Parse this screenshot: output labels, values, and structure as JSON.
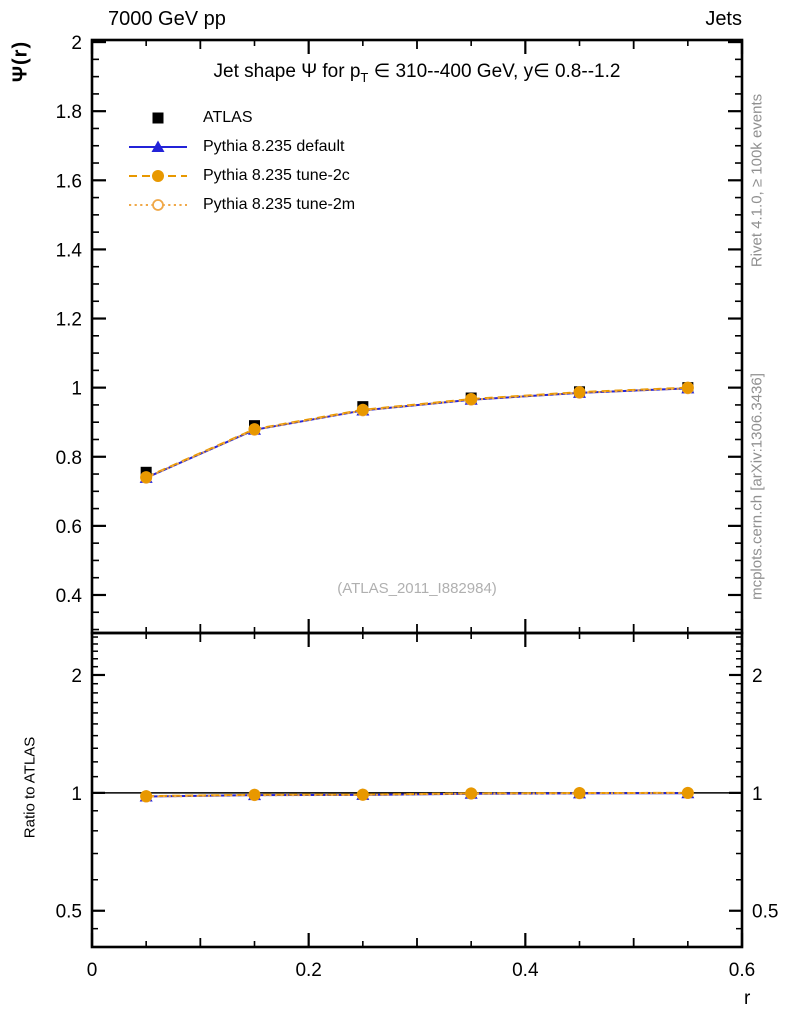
{
  "header": {
    "left": "7000 GeV pp",
    "right": "Jets"
  },
  "main_panel": {
    "title_prefix": "Jet shape Ψ for p",
    "title_sub": "T",
    "title_suffix": " ∈ 310--400 GeV, y∈ 0.8--1.2",
    "ylabel": "Ψ(r)",
    "watermark": "(ATLAS_2011_I882984)"
  },
  "ratio_panel": {
    "ylabel": "Ratio to ATLAS"
  },
  "sidebar": {
    "top": "Rivet 4.1.0, ≥ 100k events",
    "bottom": "mcplots.cern.ch [arXiv:1306.3436]"
  },
  "xaxis": {
    "label": "r"
  },
  "legend": [
    {
      "label": "ATLAS",
      "marker": "square-filled",
      "color": "#000000",
      "line": "none"
    },
    {
      "label": "Pythia 8.235 default",
      "marker": "triangle-filled",
      "color": "#2323d8",
      "line": "solid"
    },
    {
      "label": "Pythia 8.235 tune-2c",
      "marker": "circle-filled",
      "color": "#e89800",
      "line": "dashed"
    },
    {
      "label": "Pythia 8.235 tune-2m",
      "marker": "circle-open",
      "color": "#f0a848",
      "line": "dotted"
    }
  ],
  "chart_data": {
    "type": "line",
    "title": "Jet shape Ψ for p_T ∈ 310--400 GeV, y ∈ 0.8--1.2",
    "xlabel": "r",
    "ylabel": "Ψ(r)",
    "ratio_ylabel": "Ratio to ATLAS",
    "grid": false,
    "legend_position": "top-left",
    "x": [
      0.05,
      0.15,
      0.25,
      0.35,
      0.45,
      0.55
    ],
    "series": [
      {
        "name": "ATLAS",
        "marker": "square-filled",
        "color": "#000000",
        "line": "none",
        "values": [
          0.755,
          0.89,
          0.945,
          0.97,
          0.988,
          1.0
        ]
      },
      {
        "name": "Pythia 8.235 default",
        "marker": "triangle-filled",
        "color": "#2323d8",
        "line": "solid",
        "values": [
          0.739,
          0.878,
          0.934,
          0.965,
          0.985,
          0.998
        ]
      },
      {
        "name": "Pythia 8.235 tune-2c",
        "marker": "circle-filled",
        "color": "#e89800",
        "line": "dashed",
        "values": [
          0.741,
          0.88,
          0.936,
          0.967,
          0.987,
          1.0
        ]
      },
      {
        "name": "Pythia 8.235 tune-2m",
        "marker": "circle-open",
        "color": "#f0a848",
        "line": "dotted",
        "values": [
          0.739,
          0.878,
          0.934,
          0.965,
          0.985,
          0.998
        ]
      }
    ],
    "xlim": [
      0,
      0.6
    ],
    "x_ticks": {
      "major": [
        0,
        0.2,
        0.4,
        0.6
      ],
      "medium": [
        0.1,
        0.3,
        0.5
      ],
      "minor": [
        0.05,
        0.15,
        0.25,
        0.35,
        0.45,
        0.55
      ]
    },
    "x_major_labels": [
      "0",
      "0.2",
      "0.4",
      "0.6"
    ],
    "ylim_main": [
      0.29,
      2.006
    ],
    "y_ticks_main": {
      "major": [
        0.4,
        0.6,
        0.8,
        1.0,
        1.2,
        1.4,
        1.6,
        1.8,
        2.0
      ],
      "minor_step": 0.05
    },
    "y_major_labels_main": [
      "0.4",
      "0.6",
      "0.8",
      "1",
      "1.2",
      "1.4",
      "1.6",
      "1.8",
      "2"
    ],
    "ratio": {
      "scale": "log",
      "ylim": [
        0.404,
        2.56
      ],
      "reference": 1.0,
      "y_ticks": {
        "major": [
          0.5,
          1,
          2
        ],
        "minor": [
          0.45,
          0.6,
          0.7,
          0.8,
          0.9,
          1.1,
          1.2,
          1.3,
          1.4,
          1.5,
          1.6,
          1.7,
          1.8,
          1.9,
          2.1,
          2.2,
          2.3,
          2.4,
          2.5
        ]
      },
      "y_major_labels": [
        "0.5",
        "1",
        "2"
      ],
      "series": [
        {
          "name": "Pythia 8.235 default",
          "marker": "triangle-filled",
          "color": "#2323d8",
          "line": "solid",
          "values": [
            0.979,
            0.987,
            0.988,
            0.995,
            0.997,
            0.998
          ]
        },
        {
          "name": "Pythia 8.235 tune-2c",
          "marker": "circle-filled",
          "color": "#e89800",
          "line": "dashed",
          "values": [
            0.981,
            0.989,
            0.99,
            0.997,
            0.999,
            1.0
          ]
        },
        {
          "name": "Pythia 8.235 tune-2m",
          "marker": "circle-open",
          "color": "#f0a848",
          "line": "dotted",
          "values": [
            0.978,
            0.986,
            0.988,
            0.995,
            0.997,
            0.999
          ]
        }
      ]
    }
  }
}
